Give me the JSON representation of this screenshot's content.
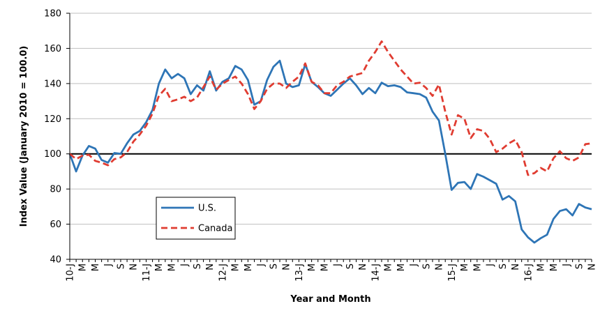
{
  "chart_data": {
    "type": "line",
    "title": "",
    "xlabel": "Year and Month",
    "ylabel": "Index Value (January 2010 = 100.0)",
    "ylim": [
      40,
      180
    ],
    "yticks": [
      40,
      60,
      80,
      100,
      120,
      140,
      160,
      180
    ],
    "grid": "horizontal",
    "reference_line": 100,
    "legend_placement": "lower-left",
    "x_start_month": "2010-01",
    "tick_labels": [
      "10-J",
      "M",
      "M",
      "J",
      "S",
      "N",
      "11-J",
      "M",
      "M",
      "J",
      "S",
      "N",
      "12-J",
      "M",
      "M",
      "J",
      "S",
      "N",
      "13-J",
      "M",
      "M",
      "J",
      "S",
      "N",
      "14-J",
      "M",
      "M",
      "J",
      "S",
      "N",
      "15-J",
      "M",
      "M",
      "J",
      "S",
      "N",
      "16-J",
      "M",
      "M",
      "J",
      "S",
      "N"
    ],
    "series": [
      {
        "name": "U.S.",
        "color": "#2E75B6",
        "style": "solid",
        "values": [
          100,
          90,
          99,
          104.5,
          103,
          96.5,
          95,
          100.5,
          100,
          106,
          111,
          113,
          118,
          125,
          140,
          148,
          143,
          145.5,
          143,
          134,
          139,
          136,
          147,
          136,
          141,
          143,
          150,
          148,
          142,
          128,
          130,
          142,
          149.5,
          153,
          140,
          138,
          139,
          151,
          141,
          138,
          134.5,
          133,
          136.5,
          140,
          143,
          139,
          134,
          137.5,
          134.5,
          140.5,
          138.5,
          139,
          138,
          135,
          134.5,
          134,
          132,
          124,
          119,
          100,
          79.5,
          83.5,
          84,
          80,
          88.5,
          87,
          85,
          83,
          74,
          76,
          73,
          57,
          52.5,
          49.5,
          52,
          54,
          63,
          67.5,
          68.5,
          65,
          71.5,
          69.5,
          68.5
        ]
      },
      {
        "name": "Canada",
        "color": "#E03C31",
        "style": "dashed",
        "values": [
          100,
          97,
          99,
          99.5,
          96,
          95,
          93.5,
          97,
          98,
          101,
          107,
          111,
          116,
          123,
          133,
          137,
          130,
          131,
          132.5,
          130,
          132,
          138,
          144,
          136.5,
          140,
          142,
          144,
          140,
          134,
          125.5,
          130,
          137,
          140,
          140,
          137.5,
          141,
          144,
          151.5,
          141,
          139,
          134.5,
          134.5,
          139,
          141,
          144,
          145,
          146,
          153,
          158,
          164,
          158,
          153,
          148,
          144,
          140,
          140.5,
          137.5,
          133,
          139.5,
          124,
          111,
          122,
          120,
          109,
          114,
          113,
          108.5,
          101,
          103,
          106,
          108,
          101,
          88,
          89,
          92,
          90,
          97.5,
          101.5,
          97.5,
          96,
          98,
          105.5,
          106
        ]
      }
    ]
  }
}
